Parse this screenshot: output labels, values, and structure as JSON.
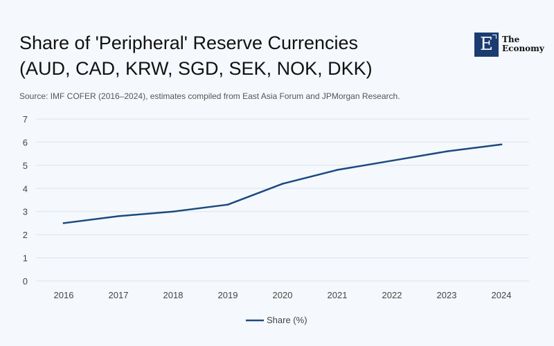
{
  "title_line1": "Share of 'Peripheral' Reserve Currencies",
  "title_line2": "(AUD, CAD, KRW, SGD, SEK, NOK, DKK)",
  "source": "Source: IMF COFER (2016–2024), estimates compiled from East Asia Forum and JPMorgan Research.",
  "logo": {
    "mark": "E",
    "line1": "The",
    "line2": "Economy"
  },
  "colors": {
    "line": "#1b4a80",
    "grid": "#dde3ea",
    "logo_bg": "#1b3c70"
  },
  "chart_data": {
    "type": "line",
    "title": "Share of 'Peripheral' Reserve Currencies (AUD, CAD, KRW, SGD, SEK, NOK, DKK)",
    "xlabel": "",
    "ylabel": "",
    "x": [
      "2016",
      "2017",
      "2018",
      "2019",
      "2020",
      "2021",
      "2022",
      "2023",
      "2024"
    ],
    "series": [
      {
        "name": "Share (%)",
        "values": [
          2.5,
          2.8,
          3.0,
          3.3,
          4.2,
          4.8,
          5.2,
          5.6,
          5.9
        ]
      }
    ],
    "ylim": [
      0,
      7
    ],
    "yticks": [
      "0",
      "1",
      "2",
      "3",
      "4",
      "5",
      "6",
      "7"
    ],
    "grid": true,
    "legend": "bottom-center"
  }
}
